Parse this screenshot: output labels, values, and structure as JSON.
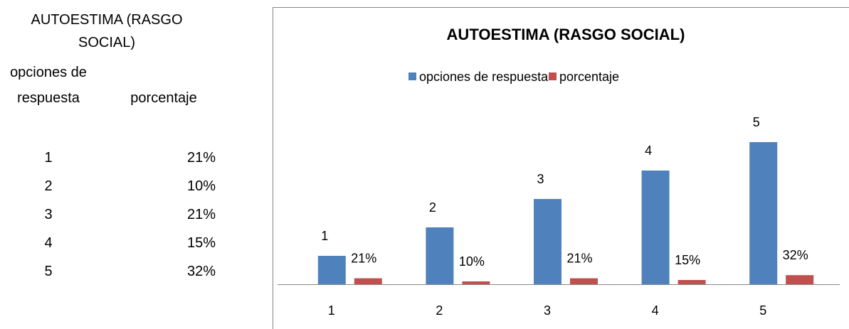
{
  "table": {
    "title": "AUTOESTIMA (RASGO SOCIAL)",
    "header": [
      "opciones de respuesta",
      "porcentaje"
    ],
    "rows": [
      [
        "1",
        "21%"
      ],
      [
        "2",
        "10%"
      ],
      [
        "3",
        "21%"
      ],
      [
        "4",
        "15%"
      ],
      [
        "5",
        "32%"
      ]
    ]
  },
  "chart_data": {
    "type": "bar",
    "title": "AUTOESTIMA (RASGO SOCIAL)",
    "categories": [
      "1",
      "2",
      "3",
      "4",
      "5"
    ],
    "series": [
      {
        "name": "opciones de respuesta",
        "color": "#4f81bd",
        "values": [
          1,
          2,
          3,
          4,
          5
        ]
      },
      {
        "name": "porcentaje",
        "color": "#c0504d",
        "values": [
          0.21,
          0.1,
          0.21,
          0.15,
          0.32
        ],
        "value_labels": [
          "21%",
          "10%",
          "21%",
          "15%",
          "32%"
        ]
      }
    ],
    "ylim": [
      0,
      6
    ],
    "legend": "top"
  }
}
